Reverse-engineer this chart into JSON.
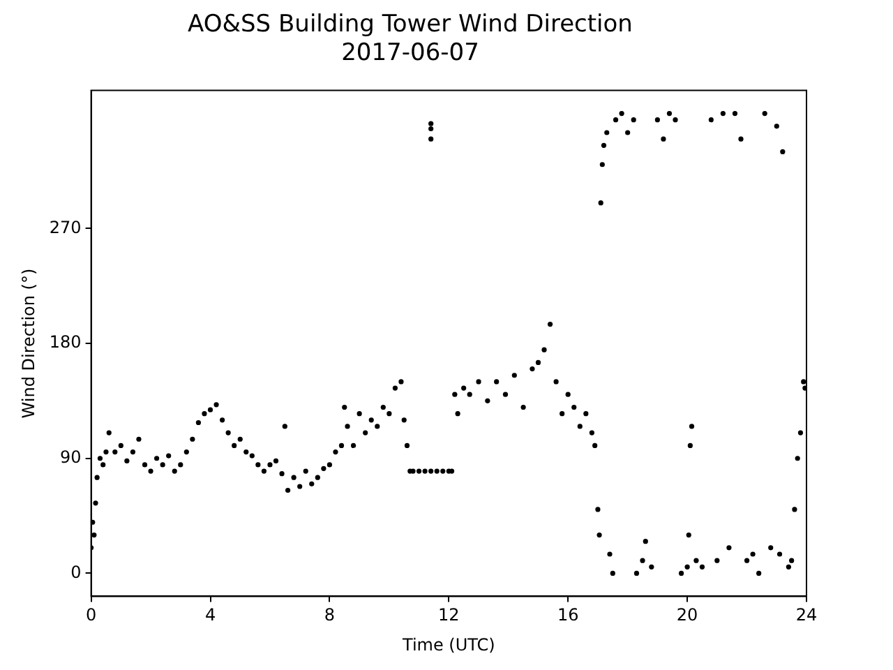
{
  "chart_data": {
    "type": "scatter",
    "title": "AO&SS Building Tower Wind Direction",
    "subtitle": "2017-06-07",
    "xlabel": "Time (UTC)",
    "ylabel": "Wind Direction (°)",
    "xlim": [
      0,
      24
    ],
    "xticks": [
      0,
      4,
      8,
      12,
      16,
      20,
      24
    ],
    "ylim": [
      -18,
      378
    ],
    "yticks": [
      0,
      90,
      180,
      270
    ],
    "grid": false,
    "legend": false,
    "marker": "circle",
    "series": [
      {
        "color": "#000000",
        "x": [
          0,
          0.05,
          0.1,
          0.15,
          0.2,
          0.3,
          0.4,
          0.5,
          0.6,
          0.8,
          1.0,
          1.2,
          1.4,
          1.6,
          1.8,
          2.0,
          2.2,
          2.4,
          2.6,
          2.8,
          3.0,
          3.2,
          3.4,
          3.6,
          3.8,
          4.0,
          4.2,
          4.4,
          4.6,
          4.8,
          5.0,
          5.2,
          5.4,
          5.6,
          5.8,
          6.0,
          6.2,
          6.4,
          6.5,
          6.6,
          6.8,
          7.0,
          7.2,
          7.4,
          7.6,
          7.8,
          8.0,
          8.2,
          8.4,
          8.5,
          8.6,
          8.8,
          9.0,
          9.2,
          9.4,
          9.6,
          9.8,
          10.0,
          10.2,
          10.4,
          10.5,
          10.6,
          10.7,
          10.8,
          11.0,
          11.2,
          11.4,
          11.4,
          11.4,
          11.4,
          11.6,
          11.8,
          12.0,
          12.1,
          12.2,
          12.3,
          12.5,
          12.7,
          13.0,
          13.3,
          13.6,
          13.9,
          14.2,
          14.5,
          14.8,
          15.0,
          15.2,
          15.4,
          15.6,
          15.8,
          16.0,
          16.2,
          16.4,
          16.6,
          16.8,
          16.9,
          17.0,
          17.05,
          17.1,
          17.15,
          17.2,
          17.3,
          17.4,
          17.5,
          17.6,
          17.8,
          18.0,
          18.2,
          18.3,
          18.5,
          18.6,
          18.8,
          19.0,
          19.2,
          19.4,
          19.6,
          19.8,
          20.0,
          20.05,
          20.1,
          20.15,
          20.3,
          20.5,
          20.8,
          21.0,
          21.2,
          21.4,
          21.6,
          21.8,
          22.0,
          22.2,
          22.4,
          22.6,
          22.8,
          23.0,
          23.1,
          23.2,
          23.4,
          23.5,
          23.6,
          23.7,
          23.8,
          23.9,
          23.95
        ],
        "values": [
          20,
          40,
          30,
          55,
          75,
          90,
          85,
          95,
          110,
          95,
          100,
          88,
          95,
          105,
          85,
          80,
          90,
          85,
          92,
          80,
          85,
          95,
          105,
          118,
          125,
          128,
          132,
          120,
          110,
          100,
          105,
          95,
          92,
          85,
          80,
          85,
          88,
          78,
          115,
          65,
          75,
          68,
          80,
          70,
          75,
          82,
          85,
          95,
          100,
          130,
          115,
          100,
          125,
          110,
          120,
          115,
          130,
          125,
          145,
          150,
          120,
          100,
          80,
          80,
          80,
          80,
          80,
          340,
          348,
          352,
          80,
          80,
          80,
          80,
          140,
          125,
          145,
          140,
          150,
          135,
          150,
          140,
          155,
          130,
          160,
          165,
          175,
          195,
          150,
          125,
          140,
          130,
          115,
          125,
          110,
          100,
          50,
          30,
          290,
          320,
          335,
          345,
          15,
          0,
          355,
          360,
          345,
          355,
          0,
          10,
          25,
          5,
          355,
          340,
          360,
          355,
          0,
          5,
          30,
          100,
          115,
          10,
          5,
          355,
          10,
          360,
          20,
          360,
          340,
          10,
          15,
          0,
          360,
          20,
          350,
          15,
          330,
          5,
          10,
          50,
          90,
          110,
          150,
          145
        ]
      }
    ]
  }
}
